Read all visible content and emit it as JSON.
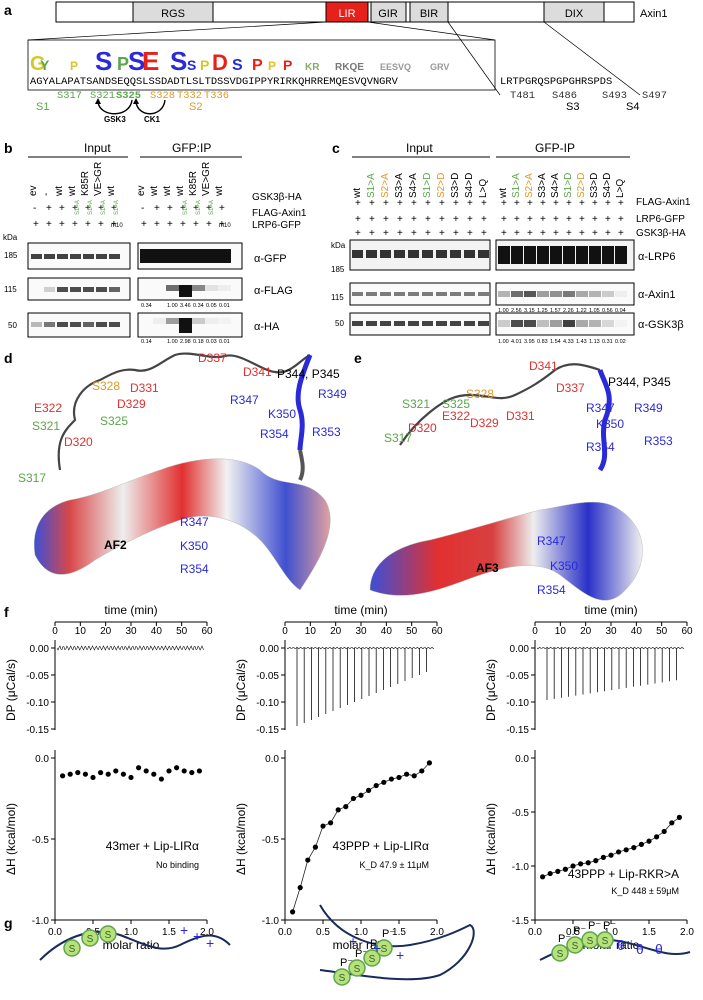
{
  "panels": {
    "a": "a",
    "b": "b",
    "c": "c",
    "d": "d",
    "e": "e",
    "f": "f",
    "g": "g"
  },
  "panel_a": {
    "domains": [
      "RGS",
      "LIR",
      "GIR",
      "BIR",
      "DIX"
    ],
    "protein": "Axin1",
    "sequence_left": "AGYALAPATSANDSEQQSLSSDADTLSLTDSSVDGIPPYRIRKQHRREMQESVQVNGRV",
    "sequence_right": "LRTPGRQSPGPGHRSPDS",
    "sites_green": [
      "S317",
      "S321",
      "S325"
    ],
    "sites_orange": [
      "S328",
      "T332",
      "T336"
    ],
    "sites_right": [
      "T481",
      "S486",
      "S493",
      "S497"
    ],
    "labels": {
      "s1": "S1",
      "s2": "S2",
      "s3": "S3",
      "s4": "S4",
      "gsk3": "GSK3",
      "ck1": "CK1"
    }
  },
  "panel_b": {
    "header_input": "Input",
    "header_ip": "GFP:IP",
    "lanes": [
      "ev",
      "-",
      "wt",
      "wt",
      "K85R",
      "VE>GR",
      "wt",
      "ev",
      "wt",
      "wt",
      "wt",
      "K85R",
      "VE>GR",
      "wt"
    ],
    "row_gsk": "GSK3β-HA",
    "row_flag": "FLAG-Axin1",
    "row_lrp": "LRP6-GFP",
    "lane_small": [
      "S1>A",
      "S1>A",
      "S1>A",
      "S1>A",
      "S1>A",
      "S1>A",
      "S1>A"
    ],
    "m10": "m10",
    "kda": "kDa",
    "markers": [
      "185",
      "115",
      "50"
    ],
    "blots": [
      "α-GFP",
      "α-FLAG",
      "α-HA"
    ],
    "quant_flag": [
      "0.34",
      "1.00",
      "3.46",
      "0.34",
      "0.05",
      "0.01"
    ],
    "quant_ha": [
      "0.14",
      "1.00",
      "2.98",
      "0.18",
      "0.03",
      "0.01"
    ]
  },
  "panel_c": {
    "header_input": "Input",
    "header_ip": "GFP-IP",
    "lanes": [
      "wt",
      "S1>A",
      "S2>A",
      "S3>A",
      "S4>A",
      "S1>D",
      "S2>D",
      "S3>D",
      "S4>D",
      "L>Q"
    ],
    "lane_colors": [
      "#000",
      "#5aa64a",
      "#d89a2b",
      "#000",
      "#000",
      "#5aa64a",
      "#d89a2b",
      "#000",
      "#000",
      "#000"
    ],
    "row_flag": "FLAG-Axin1",
    "row_lrp": "LRP6-GFP",
    "row_gsk": "GSK3β-HA",
    "kda": "kDa",
    "markers": [
      "185",
      "115",
      "50"
    ],
    "blots": [
      "α-LRP6",
      "α-Axin1",
      "α-GSK3β"
    ],
    "quant_axin": [
      "1.00",
      "2.56",
      "3.15",
      "1.25",
      "1.57",
      "2.26",
      "1.22",
      "1.05",
      "0.56",
      "0.04"
    ],
    "quant_gsk": [
      "1.00",
      "4.01",
      "3.95",
      "0.83",
      "1.54",
      "4.33",
      "1.43",
      "1.13",
      "0.31",
      "0.02"
    ]
  },
  "panel_d": {
    "res_red": [
      "D337",
      "D341",
      "D331",
      "D329",
      "E322",
      "D320"
    ],
    "res_orange": [
      "S328"
    ],
    "res_green": [
      "S325",
      "S321",
      "S317"
    ],
    "res_blue": [
      "R349",
      "K350",
      "R353",
      "R354",
      "R347"
    ],
    "pp": "P344, P345",
    "surf_blue": [
      "R347",
      "K350",
      "R354"
    ],
    "model": "AF2"
  },
  "panel_e": {
    "res_red": [
      "D341",
      "D337",
      "D331",
      "D329",
      "E322",
      "D320"
    ],
    "res_orange": [
      "S328"
    ],
    "res_green": [
      "S321",
      "S325",
      "S317"
    ],
    "res_blue": [
      "R347",
      "R349",
      "K350",
      "R353",
      "R354"
    ],
    "pp": "P344, P345",
    "surf_blue": [
      "R347",
      "K350",
      "R354"
    ],
    "model": "AF3"
  },
  "panel_f": {
    "time_label": "time (min)",
    "dp_label": "DP (μCal/s)",
    "dh_label": "ΔH (kcal/mol)",
    "x_label": "molar ratio",
    "time_ticks": [
      "0",
      "10",
      "20",
      "30",
      "40",
      "50",
      "60"
    ],
    "dp_ticks": [
      "0.00",
      "-0.05",
      "-0.10",
      "-0.15"
    ],
    "dh_ticks_1": [
      "0.0",
      "-0.5",
      "-1.0"
    ],
    "dh_ticks_3": [
      "0.0",
      "-0.5",
      "-1.0",
      "-1.5"
    ],
    "x_ticks": [
      "0.0",
      "0.5",
      "1.0",
      "1.5",
      "2.0"
    ],
    "titles": [
      "43mer + Lip-LIRα",
      "43PPP + Lip-LIRα",
      "43PPP + Lip-RKR>A"
    ],
    "notes": [
      "No binding",
      "K_D 47.9 ± 11μM",
      "K_D 448 ± 59μM"
    ]
  },
  "chart_data": [
    {
      "type": "scatter",
      "title": "43mer + Lip-LIRα",
      "xlabel": "molar ratio",
      "ylabel": "ΔH (kcal/mol)",
      "xlim": [
        0,
        2
      ],
      "ylim": [
        -1,
        0
      ],
      "x": [
        0.1,
        0.2,
        0.3,
        0.4,
        0.5,
        0.6,
        0.7,
        0.8,
        0.9,
        1.0,
        1.1,
        1.2,
        1.3,
        1.4,
        1.5,
        1.6,
        1.7,
        1.8,
        1.9
      ],
      "y": [
        -0.11,
        -0.1,
        -0.09,
        -0.1,
        -0.12,
        -0.09,
        -0.1,
        -0.08,
        -0.1,
        -0.12,
        -0.06,
        -0.08,
        -0.1,
        -0.13,
        -0.08,
        -0.06,
        -0.08,
        -0.09,
        -0.08
      ]
    },
    {
      "type": "scatter",
      "title": "43PPP + Lip-LIRα",
      "xlabel": "molar ratio",
      "ylabel": "ΔH (kcal/mol)",
      "xlim": [
        0,
        2
      ],
      "ylim": [
        -1,
        0
      ],
      "x": [
        0.1,
        0.2,
        0.3,
        0.4,
        0.5,
        0.6,
        0.7,
        0.8,
        0.9,
        1.0,
        1.1,
        1.2,
        1.3,
        1.4,
        1.5,
        1.6,
        1.7,
        1.8,
        1.9
      ],
      "y": [
        -0.95,
        -0.8,
        -0.63,
        -0.55,
        -0.42,
        -0.4,
        -0.32,
        -0.3,
        -0.25,
        -0.23,
        -0.2,
        -0.17,
        -0.15,
        -0.13,
        -0.12,
        -0.1,
        -0.11,
        -0.08,
        -0.03
      ]
    },
    {
      "type": "scatter",
      "title": "43PPP + Lip-RKR>A",
      "xlabel": "molar ratio",
      "ylabel": "ΔH (kcal/mol)",
      "xlim": [
        0,
        2
      ],
      "ylim": [
        -1.5,
        0
      ],
      "x": [
        0.1,
        0.2,
        0.3,
        0.4,
        0.5,
        0.6,
        0.7,
        0.8,
        0.9,
        1.0,
        1.1,
        1.2,
        1.3,
        1.4,
        1.5,
        1.6,
        1.7,
        1.8,
        1.9
      ],
      "y": [
        -1.1,
        -1.07,
        -1.05,
        -1.03,
        -1.0,
        -0.98,
        -0.97,
        -0.95,
        -0.92,
        -0.9,
        -0.87,
        -0.85,
        -0.83,
        -0.8,
        -0.77,
        -0.73,
        -0.68,
        -0.6,
        -0.55
      ]
    }
  ],
  "panel_g": {
    "plus": "+",
    "pminus": "P⁻",
    "s": "S",
    "theta": "θ"
  }
}
